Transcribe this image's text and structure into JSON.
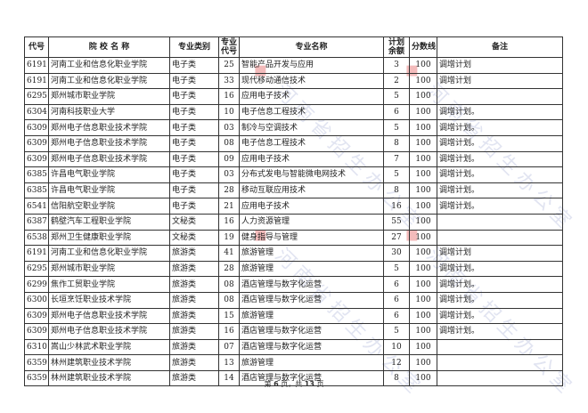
{
  "table": {
    "headers": {
      "code": "代号",
      "school": "院 校 名 称",
      "category": "专业类别",
      "major_code": "专业代号",
      "major_name": "专业名称",
      "remaining": "计划余额",
      "score": "分数线",
      "note": "备注"
    },
    "rows": [
      {
        "code": "6191",
        "school": "河南工业和信息化职业学院",
        "category": "电子类",
        "major_code": "25",
        "major_name": "智能产品开发与应用",
        "remaining": "3",
        "score": "100",
        "note": "调增计划"
      },
      {
        "code": "6191",
        "school": "河南工业和信息化职业学院",
        "category": "电子类",
        "major_code": "33",
        "major_name": "现代移动通信技术",
        "remaining": "2",
        "score": "100",
        "note": "调增计划"
      },
      {
        "code": "6295",
        "school": "郑州城市职业学院",
        "category": "电子类",
        "major_code": "16",
        "major_name": "应用电子技术",
        "remaining": "5",
        "score": "100",
        "note": ""
      },
      {
        "code": "6304",
        "school": "河南科技职业大学",
        "category": "电子类",
        "major_code": "10",
        "major_name": "电子信息工程技术",
        "remaining": "6",
        "score": "100",
        "note": "调增计划。"
      },
      {
        "code": "6309",
        "school": "郑州电子信息职业技术学院",
        "category": "电子类",
        "major_code": "03",
        "major_name": "制冷与空调技术",
        "remaining": "5",
        "score": "100",
        "note": "调增计划。"
      },
      {
        "code": "6309",
        "school": "郑州电子信息职业技术学院",
        "category": "电子类",
        "major_code": "08",
        "major_name": "电子信息工程技术",
        "remaining": "8",
        "score": "100",
        "note": "调增计划。"
      },
      {
        "code": "6309",
        "school": "郑州电子信息职业技术学院",
        "category": "电子类",
        "major_code": "09",
        "major_name": "应用电子技术",
        "remaining": "7",
        "score": "100",
        "note": "调增计划。"
      },
      {
        "code": "6385",
        "school": "许昌电气职业学院",
        "category": "电子类",
        "major_code": "03",
        "major_name": "分布式发电与智能微电网技术",
        "remaining": "5",
        "score": "100",
        "note": "调增计划。"
      },
      {
        "code": "6385",
        "school": "许昌电气职业学院",
        "category": "电子类",
        "major_code": "28",
        "major_name": "移动互联应用技术",
        "remaining": "8",
        "score": "100",
        "note": "调增计划。"
      },
      {
        "code": "6541",
        "school": "信阳航空职业学院",
        "category": "电子类",
        "major_code": "21",
        "major_name": "应用电子技术",
        "remaining": "16",
        "score": "100",
        "note": "调增计划。"
      },
      {
        "code": "6387",
        "school": "鹤壁汽车工程职业学院",
        "category": "文秘类",
        "major_code": "16",
        "major_name": "人力资源管理",
        "remaining": "55",
        "score": "100",
        "note": ""
      },
      {
        "code": "6538",
        "school": "郑州卫生健康职业学院",
        "category": "文秘类",
        "major_code": "19",
        "major_name": "健身指导与管理",
        "remaining": "27",
        "score": "100",
        "note": ""
      },
      {
        "code": "6191",
        "school": "河南工业和信息化职业学院",
        "category": "旅游类",
        "major_code": "41",
        "major_name": "旅游管理",
        "remaining": "30",
        "score": "100",
        "note": "调增计划"
      },
      {
        "code": "6295",
        "school": "郑州城市职业学院",
        "category": "旅游类",
        "major_code": "28",
        "major_name": "旅游管理",
        "remaining": "5",
        "score": "100",
        "note": "调增计划。"
      },
      {
        "code": "6299",
        "school": "焦作工贸职业学院",
        "category": "旅游类",
        "major_code": "08",
        "major_name": "酒店管理与数字化运营",
        "remaining": "6",
        "score": "100",
        "note": "调增计划。"
      },
      {
        "code": "6300",
        "school": "长垣烹饪职业技术学院",
        "category": "旅游类",
        "major_code": "08",
        "major_name": "酒店管理与数字化运营",
        "remaining": "6",
        "score": "100",
        "note": "调增计划。"
      },
      {
        "code": "6309",
        "school": "郑州电子信息职业技术学院",
        "category": "旅游类",
        "major_code": "15",
        "major_name": "旅游管理",
        "remaining": "6",
        "score": "100",
        "note": "调增计划。"
      },
      {
        "code": "6309",
        "school": "郑州电子信息职业技术学院",
        "category": "旅游类",
        "major_code": "16",
        "major_name": "酒店管理与数字化运营",
        "remaining": "5",
        "score": "100",
        "note": "调增计划。"
      },
      {
        "code": "6310",
        "school": "嵩山少林武术职业学院",
        "category": "旅游类",
        "major_code": "07",
        "major_name": "酒店管理与数字化运营",
        "remaining": "10",
        "score": "100",
        "note": ""
      },
      {
        "code": "6359",
        "school": "林州建筑职业技术学院",
        "category": "旅游类",
        "major_code": "13",
        "major_name": "旅游管理",
        "remaining": "12",
        "score": "100",
        "note": ""
      },
      {
        "code": "6359",
        "school": "林州建筑职业技术学院",
        "category": "旅游类",
        "major_code": "14",
        "major_name": "酒店管理与数字化运营",
        "remaining": "8",
        "score": "100",
        "note": ""
      }
    ]
  },
  "footer": {
    "prefix": "第",
    "page": "6",
    "middle": "页，共",
    "total": "13",
    "suffix": "页"
  },
  "watermark": {
    "text": "河南省招生办公室",
    "logo": "招办"
  }
}
